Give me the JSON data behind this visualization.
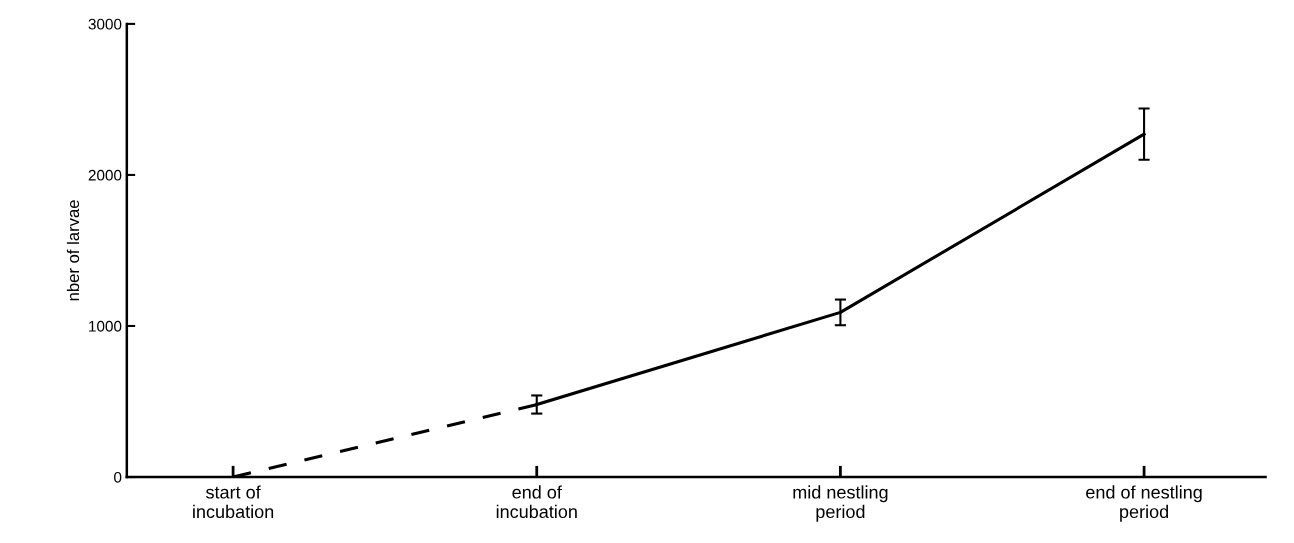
{
  "chart_data": {
    "type": "line",
    "ylabel": "nber of larvae",
    "categories": [
      "start of\nincubation",
      "end of\nincubation",
      "mid nestling\nperiod",
      "end of nestling\nperiod"
    ],
    "ylim": [
      0,
      3000
    ],
    "yticks": [
      0,
      1000,
      2000,
      3000
    ],
    "grid": false,
    "legend": false,
    "marker": "none",
    "series": [
      {
        "color": "#000000",
        "line_style": "dashed",
        "values": [
          0,
          480,
          null,
          null
        ]
      },
      {
        "color": "#000000",
        "line_style": "solid",
        "values": [
          null,
          480,
          1090,
          2270
        ],
        "errors": [
          null,
          60,
          85,
          170
        ]
      }
    ]
  }
}
